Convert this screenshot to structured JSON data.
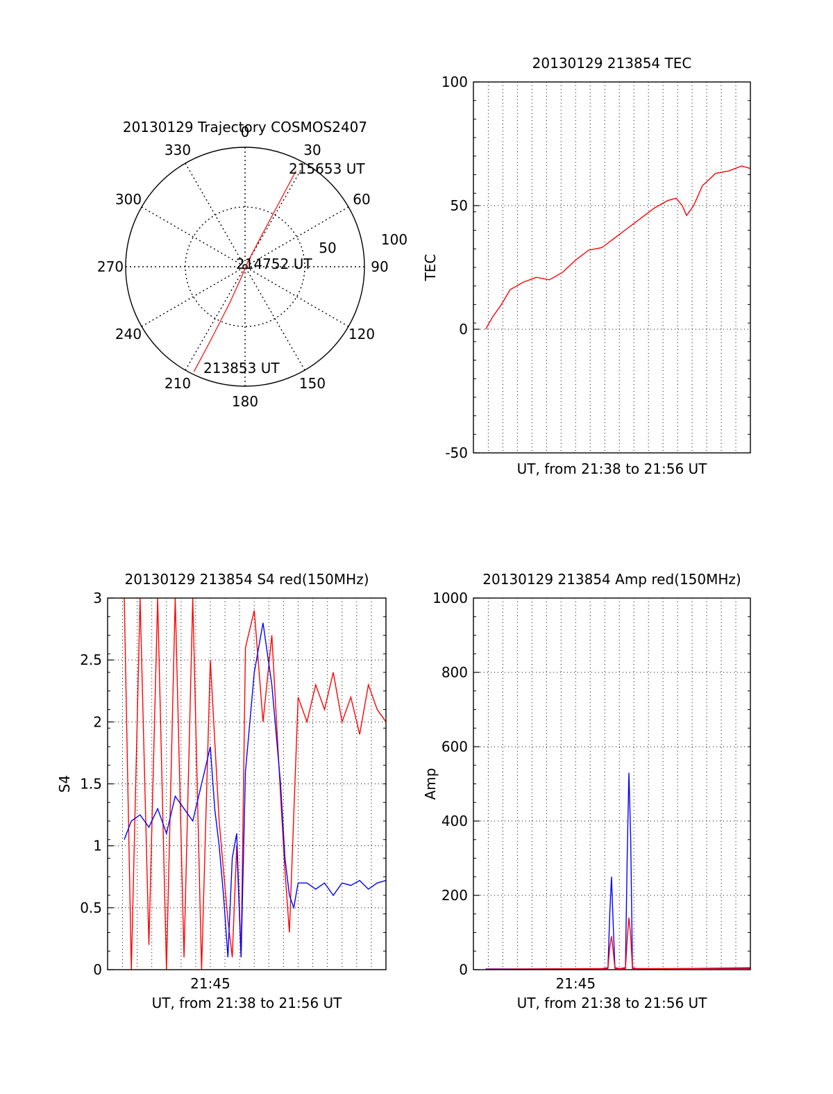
{
  "chart_data": [
    {
      "type": "polar",
      "title": "20130129 Trajectory COSMOS2407",
      "azimuth_labels": [
        "0",
        "30",
        "60",
        "90",
        "120",
        "150",
        "180",
        "210",
        "240",
        "270",
        "300",
        "330"
      ],
      "radius_labels": [
        "50",
        "100"
      ],
      "series": [
        {
          "color": "#ff0000",
          "points": [
            {
              "label": "213853 UT",
              "az": 206,
              "zenith": 88
            },
            {
              "az": 205,
              "zenith": 60
            },
            {
              "az": 203,
              "zenith": 30
            },
            {
              "az": 200,
              "zenith": 10
            },
            {
              "label": "214752 UT",
              "az": 30,
              "zenith": 4
            },
            {
              "az": 28,
              "zenith": 25
            },
            {
              "az": 28,
              "zenith": 50
            },
            {
              "az": 28,
              "zenith": 72
            },
            {
              "label": "215653 UT",
              "az": 28,
              "zenith": 82
            }
          ]
        }
      ]
    },
    {
      "type": "line",
      "title": "20130129 213854 TEC",
      "ylabel": "TEC",
      "xlabel": "UT, from 21:38 to 21:56 UT",
      "xlim": [
        21.633,
        21.95
      ],
      "ylim": [
        -50,
        100
      ],
      "yticks": [
        "-50",
        "0",
        "50",
        "100"
      ],
      "xticks": [],
      "grid": true,
      "series": [
        {
          "color": "#ff0000",
          "x": [
            21.647,
            21.655,
            21.665,
            21.675,
            21.69,
            21.705,
            21.72,
            21.735,
            21.75,
            21.765,
            21.78,
            21.795,
            21.81,
            21.825,
            21.84,
            21.855,
            21.865,
            21.872,
            21.877,
            21.885,
            21.895,
            21.91,
            21.925,
            21.94,
            21.95
          ],
          "y": [
            0,
            5,
            10,
            16,
            19,
            21,
            20,
            23,
            28,
            32,
            33,
            37,
            41,
            45,
            49,
            52,
            53,
            50,
            46,
            50,
            58,
            63,
            64,
            66,
            65
          ]
        }
      ]
    },
    {
      "type": "line",
      "title": "20130129 213854 S4 red(150MHz)",
      "ylabel": "S4",
      "xlabel": "UT, from 21:38 to 21:56 UT",
      "xlim": [
        21.633,
        21.95
      ],
      "ylim": [
        0,
        3
      ],
      "yticks": [
        "0",
        "0.5",
        "1",
        "1.5",
        "2",
        "2.5",
        "3"
      ],
      "xticks": [
        {
          "label": "21:45",
          "value": 21.75
        }
      ],
      "grid": true,
      "series": [
        {
          "color": "#ff0000",
          "x": [
            21.652,
            21.66,
            21.67,
            21.68,
            21.69,
            21.7,
            21.71,
            21.72,
            21.73,
            21.74,
            21.75,
            21.76,
            21.765,
            21.77,
            21.775,
            21.78,
            21.785,
            21.79,
            21.8,
            21.81,
            21.82,
            21.83,
            21.835,
            21.84,
            21.85,
            21.86,
            21.87,
            21.88,
            21.89,
            21.9,
            21.91,
            21.92,
            21.93,
            21.94,
            21.95
          ],
          "y": [
            3,
            0,
            3,
            0.2,
            3,
            0,
            3,
            0.1,
            3,
            0,
            2.5,
            1.2,
            0.8,
            0.4,
            0.1,
            1.0,
            0.1,
            2.6,
            2.9,
            2.0,
            2.7,
            1.4,
            0.8,
            0.3,
            2.2,
            2.0,
            2.3,
            2.1,
            2.4,
            2.0,
            2.2,
            1.9,
            2.3,
            2.1,
            2.0
          ]
        },
        {
          "color": "#0000ff",
          "x": [
            21.652,
            21.66,
            21.67,
            21.68,
            21.69,
            21.7,
            21.71,
            21.72,
            21.73,
            21.74,
            21.75,
            21.755,
            21.76,
            21.765,
            21.77,
            21.775,
            21.78,
            21.785,
            21.79,
            21.8,
            21.81,
            21.82,
            21.83,
            21.835,
            21.84,
            21.845,
            21.85,
            21.86,
            21.87,
            21.88,
            21.89,
            21.9,
            21.91,
            21.92,
            21.93,
            21.94,
            21.95
          ],
          "y": [
            1.05,
            1.2,
            1.25,
            1.15,
            1.3,
            1.1,
            1.4,
            1.3,
            1.2,
            1.5,
            1.8,
            1.3,
            1.0,
            0.6,
            0.1,
            0.9,
            1.1,
            0.1,
            1.6,
            2.4,
            2.8,
            2.3,
            1.5,
            0.9,
            0.6,
            0.5,
            0.7,
            0.7,
            0.65,
            0.7,
            0.6,
            0.7,
            0.68,
            0.72,
            0.65,
            0.7,
            0.72
          ]
        }
      ]
    },
    {
      "type": "line",
      "title": "20130129 213854 Amp red(150MHz)",
      "ylabel": "Amp",
      "xlabel": "UT, from 21:38 to 21:56 UT",
      "xlim": [
        21.633,
        21.95
      ],
      "ylim": [
        0,
        1000
      ],
      "yticks": [
        "0",
        "200",
        "400",
        "600",
        "800",
        "1000"
      ],
      "xticks": [
        {
          "label": "21:45",
          "value": 21.75
        }
      ],
      "grid": true,
      "series": [
        {
          "color": "#0000ff",
          "x": [
            21.647,
            21.7,
            21.78,
            21.787,
            21.789,
            21.791,
            21.793,
            21.795,
            21.8,
            21.807,
            21.809,
            21.811,
            21.813,
            21.815,
            21.82,
            21.84,
            21.95
          ],
          "y": [
            2,
            2,
            3,
            5,
            150,
            250,
            120,
            5,
            3,
            5,
            300,
            530,
            350,
            5,
            3,
            2,
            5
          ]
        },
        {
          "color": "#ff0000",
          "x": [
            21.647,
            21.787,
            21.789,
            21.791,
            21.793,
            21.795,
            21.807,
            21.809,
            21.811,
            21.813,
            21.815,
            21.95
          ],
          "y": [
            1,
            3,
            60,
            90,
            50,
            3,
            3,
            80,
            140,
            90,
            3,
            3
          ]
        }
      ]
    }
  ]
}
